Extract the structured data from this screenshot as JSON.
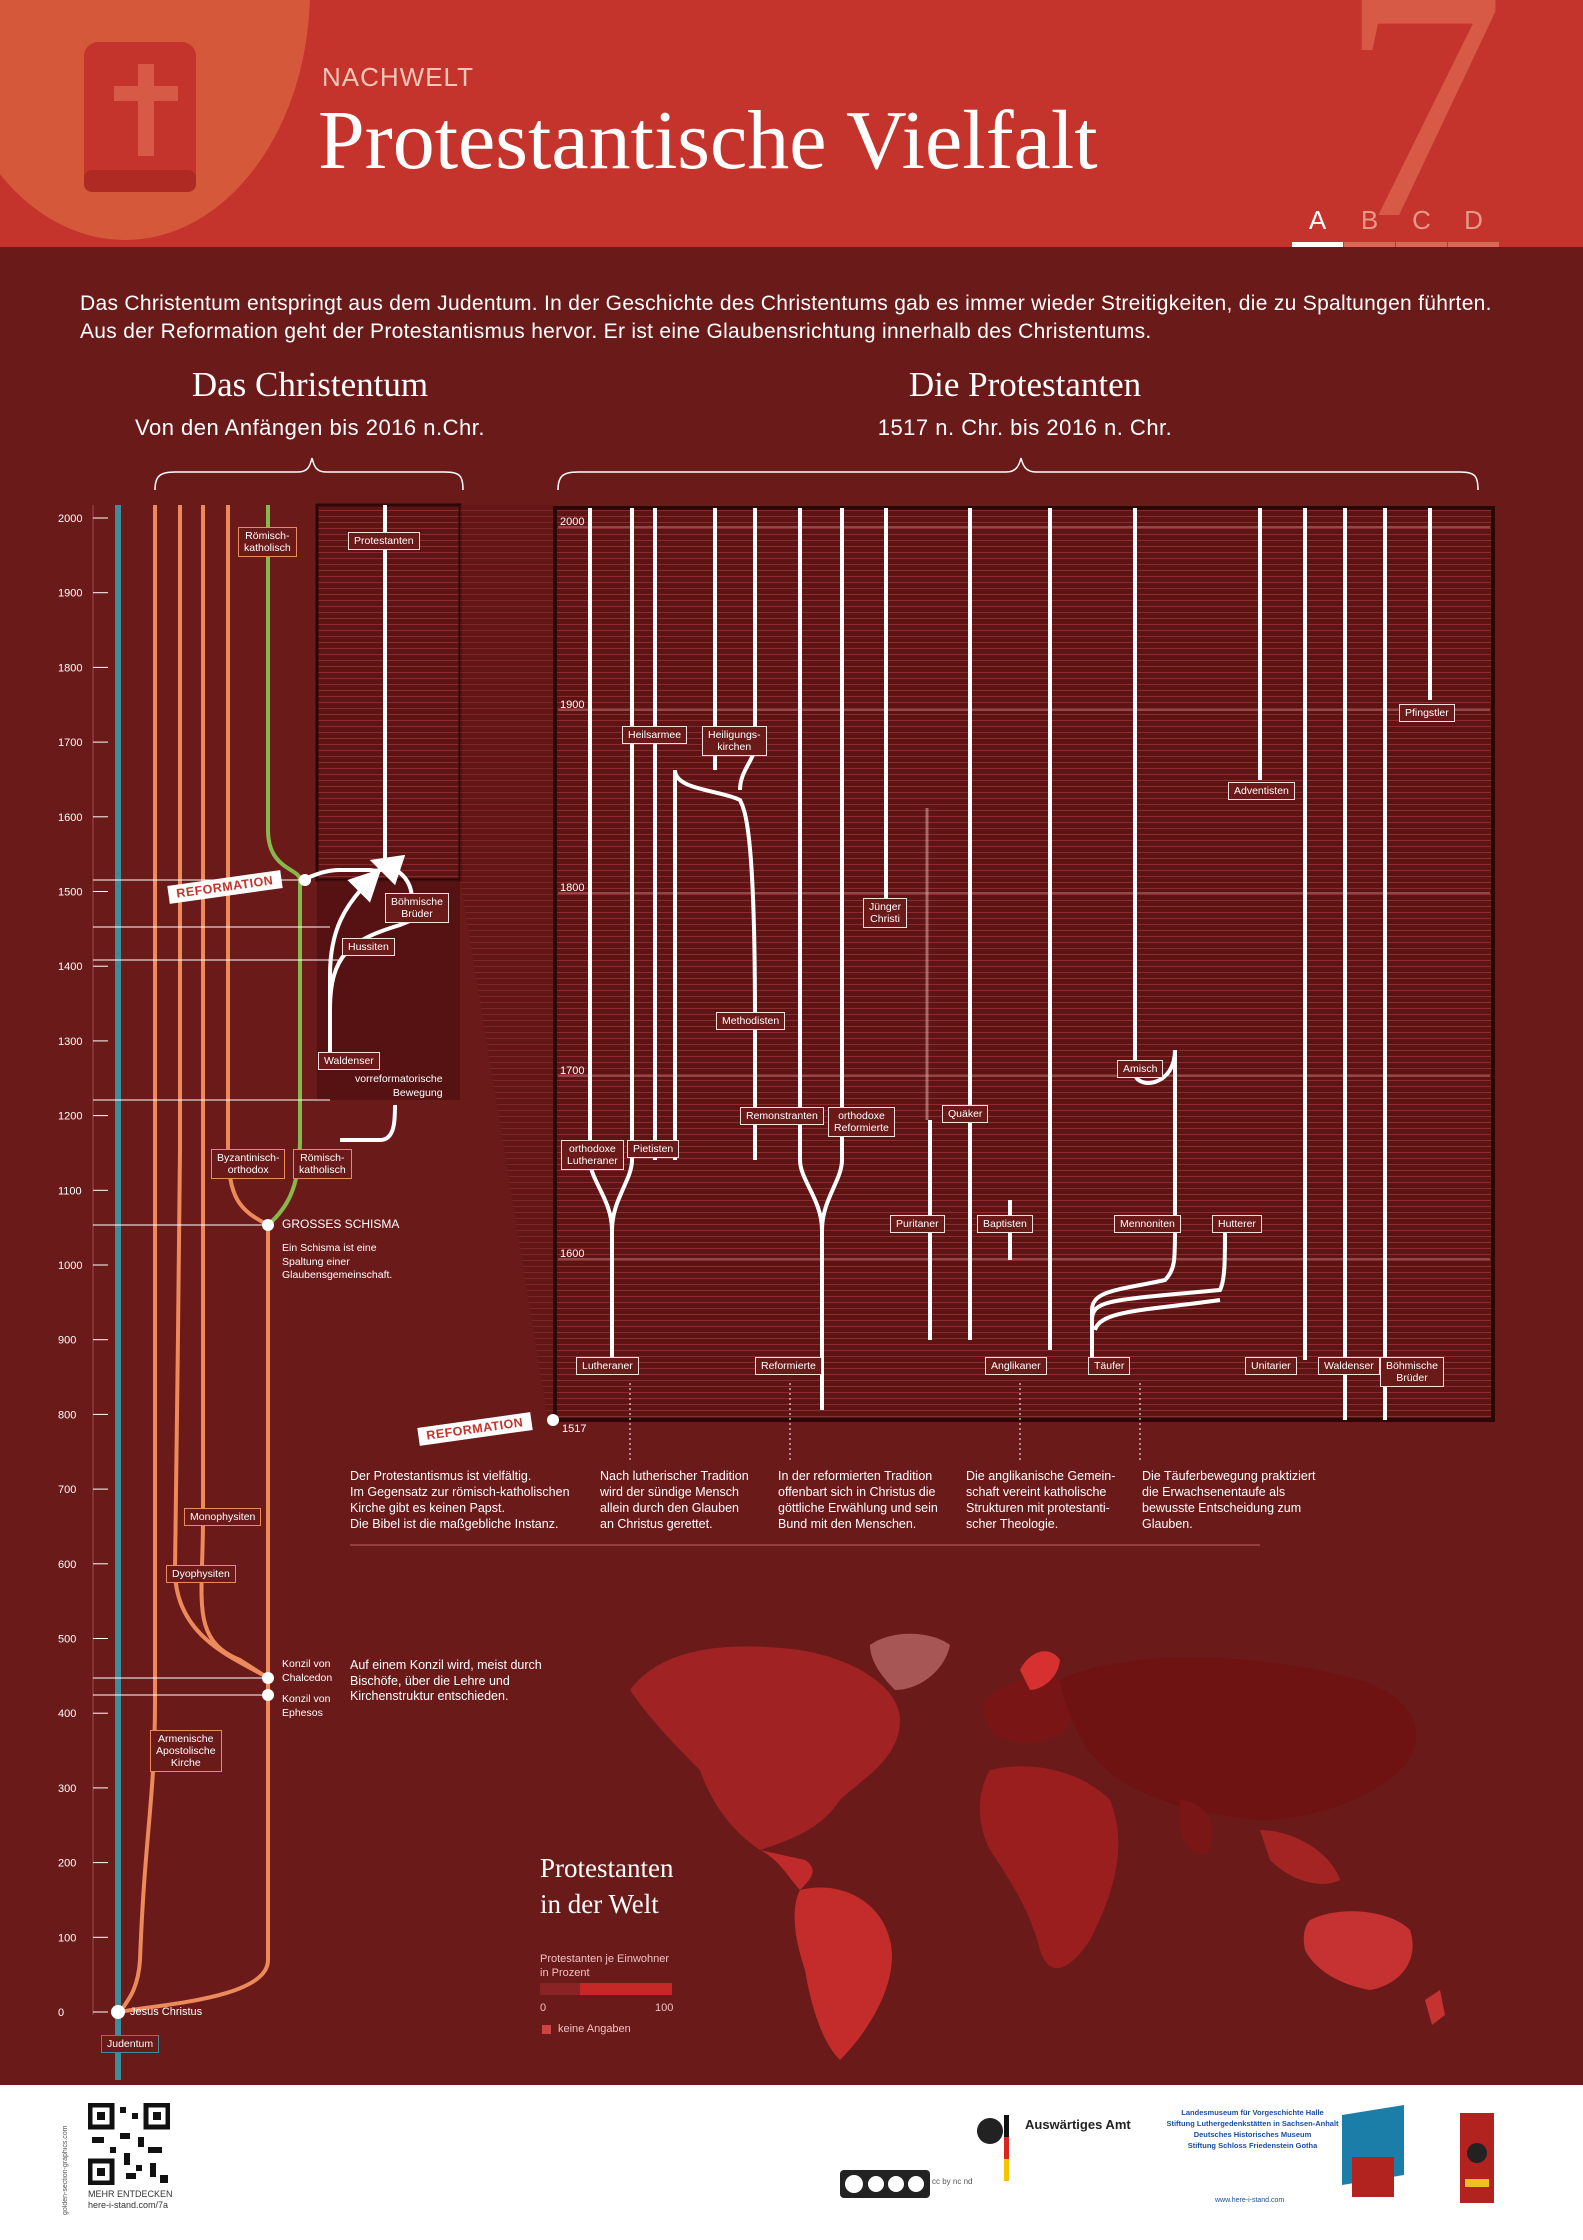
{
  "header": {
    "kicker": "NACHWELT",
    "title": "Protestantische Vielfalt",
    "number": "7",
    "tabs": [
      "A",
      "B",
      "C",
      "D"
    ],
    "active_tab": "A"
  },
  "intro": "Das Christentum entspringt aus dem Judentum. In der Geschichte des Christentums gab es immer wieder Streitigkeiten, die zu Spaltungen führten. Aus der Reformation geht der Protestantismus hervor. Er ist eine Glaubensrichtung innerhalb des Christentums.",
  "sections": {
    "christentum": {
      "title": "Das Christentum",
      "subtitle": "Von den Anfängen bis 2016 n.Chr."
    },
    "protestanten": {
      "title": "Die Protestanten",
      "subtitle": "1517 n. Chr. bis 2016 n. Chr."
    }
  },
  "left_axis": {
    "ticks": [
      "2000",
      "1900",
      "1800",
      "1700",
      "1600",
      "1500",
      "1400",
      "1300",
      "1200",
      "1100",
      "1000",
      "900",
      "800",
      "700",
      "600",
      "500",
      "400",
      "300",
      "200",
      "100",
      "0"
    ]
  },
  "right_axis": {
    "ticks": [
      "2000",
      "1900",
      "1800",
      "1700",
      "1600"
    ],
    "start_label": "1517"
  },
  "left_labels": {
    "roemisch_top": "Römisch-\nkatholisch",
    "protestanten": "Protestanten",
    "reformation": "REFORMATION",
    "boehmische": "Böhmische\nBrüder",
    "hussiten": "Hussiten",
    "waldenser": "Waldenser",
    "vorreformatorische": "vorreformatorische\nBewegung",
    "byzantinisch": "Byzantinisch-\northodox",
    "roemisch_low": "Römisch-\nkatholisch",
    "schisma": "GROSSES SCHISMA",
    "schisma_note": "Ein Schisma ist eine\nSpaltung einer\nGlaubensgemeinschaft.",
    "monophysiten": "Monophysiten",
    "dyophysiten": "Dyophysiten",
    "konzil_chalcedon": "Konzil von\nChalcedon",
    "konzil_ephesos": "Konzil von\nEphesos",
    "konzil_note": "Auf einem Konzil wird, meist durch\nBischöfe, über die Lehre und\nKirchenstruktur entschieden.",
    "armenisch": "Armenische\nApostolische\nKirche",
    "jesus": "Jesus Christus",
    "judentum": "Judentum"
  },
  "right_labels": {
    "heilsarmee": "Heilsarmee",
    "heiligungskirchen": "Heiligungs-\nkirchen",
    "pfingstler": "Pfingstler",
    "adventisten": "Adventisten",
    "juenger": "Jünger\nChristi",
    "methodisten": "Methodisten",
    "amisch": "Amisch",
    "remonstranten": "Remonstranten",
    "orthodoxe_reformierte": "orthodoxe\nReformierte",
    "quaeker": "Quäker",
    "orthodoxe_lutheraner": "orthodoxe\nLutheraner",
    "pietisten": "Pietisten",
    "puritaner": "Puritaner",
    "baptisten": "Baptisten",
    "mennoniten": "Mennoniten",
    "hutterer": "Hutterer",
    "lutheraner": "Lutheraner",
    "reformierte": "Reformierte",
    "anglikaner": "Anglikaner",
    "taeufer": "Täufer",
    "unitarier": "Unitarier",
    "waldenser": "Waldenser",
    "boehmische": "Böhmische\nBrüder",
    "reformation": "REFORMATION"
  },
  "notes": {
    "vielfaeltig": "Der Protestantismus ist vielfältig.\nIm Gegensatz zur römisch-katholischen\nKirche gibt es keinen Papst.\nDie Bibel ist die maßgebliche Instanz.",
    "lutherisch": "Nach lutherischer Tradition\nwird der sündige Mensch\nallein durch den Glauben\nan Christus gerettet.",
    "reformiert": "In der reformierten Tradition\noffenbart sich in Christus die\ngöttliche Erwählung und sein\nBund mit den Menschen.",
    "anglikanisch": "Die anglikanische Gemein-\nschaft vereint katholische\nStrukturen mit protestanti-\nscher Theologie.",
    "taeufer": "Die Täuferbewegung praktiziert\ndie Erwachsenentaufe als\nbewusste Entscheidung zum\nGlauben."
  },
  "map": {
    "title": "Protestanten\nin der Welt",
    "legend_title": "Protestanten je Einwohner\nin Prozent",
    "legend_min": "0",
    "legend_max": "100",
    "legend_no_data": "keine Angaben"
  },
  "footer": {
    "qr_caption": "MEHR ENTDECKEN\nhere-i-stand.com/7a",
    "side_text": "golden-section-graphics.com",
    "auswaertiges_amt": "Auswärtiges Amt",
    "partners": "Landesmuseum für Vorgeschichte Halle\nStiftung Luthergedenkstätten in Sachsen-Anhalt\nDeutsches Historisches Museum\nStiftung Schloss Friedenstein Gotha",
    "partners_url": "www.here-i-stand.com",
    "license": "cc by nc nd"
  },
  "colors": {
    "header_red": "#c4342c",
    "background": "#6b1a1a",
    "judentum_line": "#3e8c9b",
    "orthodox_line": "#ec8a5c",
    "catholic_line": "#86b84c",
    "protestant_line": "#ffffff"
  }
}
